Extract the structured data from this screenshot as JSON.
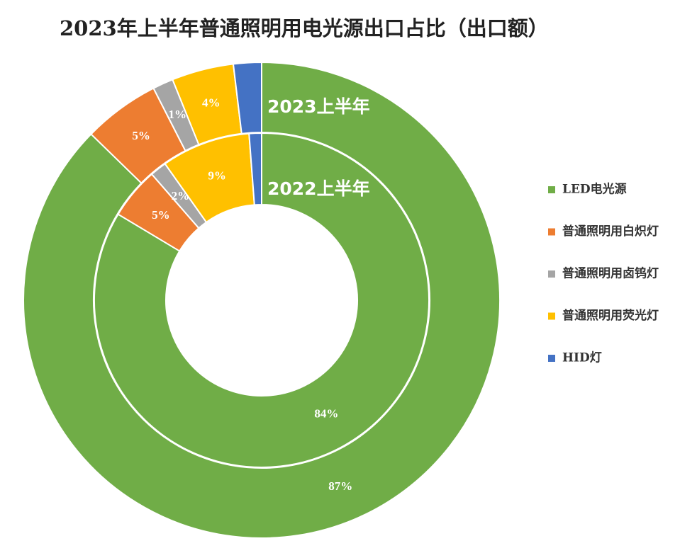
{
  "chart_data": {
    "type": "donut",
    "title": "2023年上半年普通照明用电光源出口占比（出口额）",
    "categories": [
      "LED电光源",
      "普通照明用白炽灯",
      "普通照明用卤钨灯",
      "普通照明用荧光灯",
      "HID灯"
    ],
    "colors": [
      "#70ad47",
      "#ed7d31",
      "#a5a5a5",
      "#ffc000",
      "#4472c4"
    ],
    "legend": "right",
    "series": [
      {
        "name": "2023上半年",
        "values": [
          87.3,
          5.2,
          1.4,
          4.2,
          1.9
        ],
        "value_labels": [
          "87%",
          "5%",
          "1%",
          "4%",
          null
        ]
      },
      {
        "name": "2022上半年",
        "values": [
          83.6,
          5.0,
          1.6,
          8.6,
          1.2
        ],
        "value_labels": [
          "84%",
          "5%",
          "2%",
          "9%",
          null
        ]
      }
    ]
  }
}
